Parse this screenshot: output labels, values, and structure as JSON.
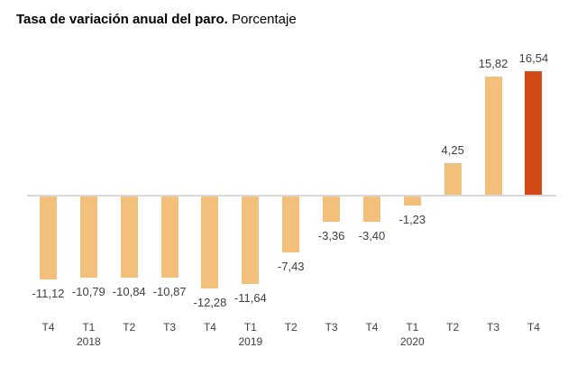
{
  "title": {
    "bold": "Tasa de variación anual del paro.",
    "regular": "Porcentaje"
  },
  "chart_data": {
    "type": "bar",
    "title": "Tasa de variación anual del paro. Porcentaje",
    "xlabel": "",
    "ylabel": "",
    "categories": [
      "T4",
      "T1 2018",
      "T2 2018",
      "T3 2018",
      "T4 2018",
      "T1 2019",
      "T2 2019",
      "T3 2019",
      "T4 2019",
      "T1 2020",
      "T2 2020",
      "T3 2020",
      "T4 2020"
    ],
    "values": [
      -11.12,
      -10.79,
      -10.84,
      -10.87,
      -12.28,
      -11.64,
      -7.43,
      -3.36,
      -3.4,
      -1.23,
      4.25,
      15.82,
      16.54
    ],
    "value_labels": [
      "-11,12",
      "-10,79",
      "-10,84",
      "-10,87",
      "-12,28",
      "-11,64",
      "-7,43",
      "-3,36",
      "-3,40",
      "-1,23",
      "4,25",
      "15,82",
      "16,54"
    ],
    "x_ticks": [
      {
        "quarter": "T4",
        "year": ""
      },
      {
        "quarter": "T1",
        "year": "2018"
      },
      {
        "quarter": "T2",
        "year": ""
      },
      {
        "quarter": "T3",
        "year": ""
      },
      {
        "quarter": "T4",
        "year": ""
      },
      {
        "quarter": "T1",
        "year": "2019"
      },
      {
        "quarter": "T2",
        "year": ""
      },
      {
        "quarter": "T3",
        "year": ""
      },
      {
        "quarter": "T4",
        "year": ""
      },
      {
        "quarter": "T1",
        "year": "2020"
      },
      {
        "quarter": "T2",
        "year": ""
      },
      {
        "quarter": "T3",
        "year": ""
      },
      {
        "quarter": "T4",
        "year": ""
      }
    ],
    "highlight_index": 12,
    "bar_color": "#f2c07b",
    "highlight_color": "#d34a16",
    "axis_color": "#d9d9d9",
    "label_color": "#404040",
    "ylim": [
      -14,
      18
    ],
    "grid": false,
    "legend": "none",
    "data_labels": true
  }
}
